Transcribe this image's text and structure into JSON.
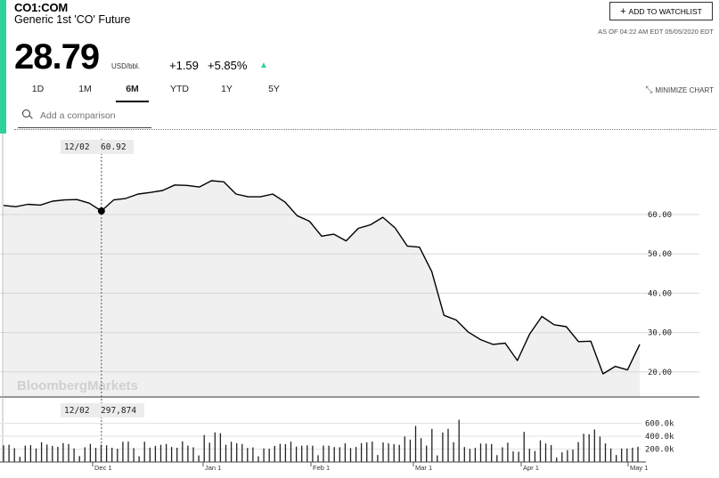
{
  "header": {
    "ticker": "CO1:COM",
    "name": "Generic 1st 'CO' Future",
    "price": "28.79",
    "unit": "USD/bbl.",
    "change": "+1.59",
    "change_pct": "+5.85%",
    "trend_icon": "up-triangle-icon",
    "as_of": "AS OF 04:22 AM EDT 05/05/2020 EDT",
    "watchlist_label": "ADD TO WATCHLIST",
    "accent_color": "#2fd19b"
  },
  "ranges": {
    "items": [
      "1D",
      "1M",
      "6M",
      "YTD",
      "1Y",
      "5Y"
    ],
    "active": "6M"
  },
  "minimize_label": "MINIMIZE CHART",
  "comparison": {
    "placeholder": "Add a comparison"
  },
  "watermark": "BloombergMarkets",
  "tooltip": {
    "date": "12/02",
    "price": "60.92",
    "volume": "297,874"
  },
  "chart_data": [
    {
      "type": "area",
      "series": [
        {
          "x": [
            "Nov 5",
            "Nov 8",
            "Nov 12",
            "Nov 15",
            "Nov 19",
            "Nov 22",
            "Nov 26",
            "Nov 29",
            "Dec 2",
            "Dec 5",
            "Dec 9",
            "Dec 12",
            "Dec 16",
            "Dec 19",
            "Dec 23",
            "Dec 27",
            "Dec 31",
            "Jan 3",
            "Jan 6",
            "Jan 9",
            "Jan 13",
            "Jan 16",
            "Jan 20",
            "Jan 23",
            "Jan 27",
            "Jan 30",
            "Feb 3",
            "Feb 6",
            "Feb 10",
            "Feb 13",
            "Feb 17",
            "Feb 20",
            "Feb 24",
            "Feb 27",
            "Mar 2",
            "Mar 5",
            "Mar 9",
            "Mar 12",
            "Mar 16",
            "Mar 19",
            "Mar 23",
            "Mar 26",
            "Mar 30",
            "Apr 2",
            "Apr 6",
            "Apr 9",
            "Apr 13",
            "Apr 16",
            "Apr 20",
            "Apr 23",
            "Apr 27",
            "Apr 30",
            "May 4"
          ],
          "values": [
            62.3,
            62.0,
            62.6,
            62.4,
            63.4,
            63.7,
            63.8,
            62.9,
            60.9,
            63.7,
            64.1,
            65.2,
            65.6,
            66.1,
            67.5,
            67.4,
            67.0,
            68.6,
            68.3,
            65.2,
            64.5,
            64.5,
            65.2,
            63.2,
            59.7,
            58.3,
            54.5,
            55.0,
            53.3,
            56.5,
            57.4,
            59.3,
            56.6,
            52.0,
            51.7,
            45.5,
            34.4,
            33.2,
            30.1,
            28.2,
            27.0,
            27.3,
            22.9,
            29.6,
            34.1,
            32.0,
            31.5,
            27.7,
            27.8,
            19.5,
            21.4,
            20.5,
            27.0
          ]
        }
      ],
      "y_ticks": [
        "60.00",
        "50.00",
        "40.00",
        "30.00",
        "20.00"
      ],
      "ylim": [
        15,
        70
      ],
      "grid": true
    },
    {
      "type": "bar",
      "name": "volume",
      "y_ticks": [
        "600.0k",
        "400.0k",
        "200.0k"
      ],
      "ylim": [
        0,
        750000
      ],
      "x_ticks": [
        "Dec 1",
        "Jan 1",
        "Feb 1",
        "Mar 1",
        "Apr 1",
        "May 1"
      ]
    }
  ]
}
